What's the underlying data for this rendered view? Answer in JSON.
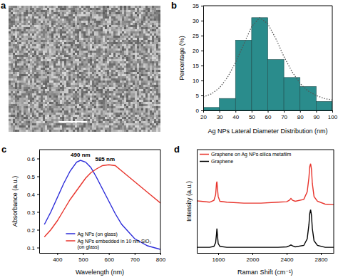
{
  "chart_data": [
    {
      "type": "image",
      "title": "a"
    },
    {
      "type": "histogram",
      "title": "b",
      "x_label": "Ag NPs Lateral Diameter Distribution (nm)",
      "y_label": "Percentage (%)",
      "bins": [
        20,
        30,
        40,
        50,
        60,
        70,
        80,
        90,
        100
      ],
      "values": [
        1,
        4,
        23.5,
        31,
        17,
        11,
        8,
        3
      ],
      "color": "#2a8c8c",
      "xlim": [
        20,
        100
      ],
      "ylim": [
        0,
        35
      ],
      "xticks": [
        20,
        30,
        40,
        50,
        60,
        70,
        80,
        90,
        100
      ],
      "yticks": [
        0,
        5,
        10,
        15,
        20,
        25,
        30,
        35
      ],
      "series": [
        {
          "type": "line",
          "line_style": "dotted",
          "color": "#555555",
          "x": [
            20,
            25,
            30,
            35,
            40,
            45,
            50,
            55,
            60,
            65,
            70,
            75,
            80,
            85,
            90,
            95,
            100
          ],
          "values": [
            4.5,
            5.5,
            7.5,
            11,
            16,
            22,
            28,
            31,
            29,
            24,
            18,
            13,
            9,
            6.5,
            5,
            4,
            3.5
          ]
        }
      ]
    },
    {
      "type": "line",
      "title": "c",
      "x_label": "Wavelength (nm)",
      "y_label": "Absorbance (a.u.)",
      "x": [
        350,
        375,
        400,
        425,
        450,
        475,
        490,
        510,
        530,
        550,
        575,
        600,
        625,
        650,
        700,
        750,
        800
      ],
      "series": [
        {
          "name": "Ag NPs (on glass)",
          "color": "#2b2bd9",
          "values": [
            0.23,
            0.3,
            0.38,
            0.46,
            0.53,
            0.58,
            0.59,
            0.58,
            0.55,
            0.5,
            0.43,
            0.36,
            0.29,
            0.23,
            0.15,
            0.11,
            0.09
          ]
        },
        {
          "name": "Ag NPs embedded in 10 nm SiO₂ (on glass)",
          "color": "#e8332b",
          "values": [
            0.16,
            0.2,
            0.25,
            0.31,
            0.37,
            0.42,
            0.45,
            0.49,
            0.52,
            0.54,
            0.56,
            0.565,
            0.56,
            0.53,
            0.47,
            0.41,
            0.35
          ]
        }
      ],
      "xlim": [
        330,
        800
      ],
      "ylim": [
        0.07,
        0.65
      ],
      "xticks": [
        400,
        500,
        600,
        700,
        800
      ],
      "yticks": [
        0.1,
        0.2,
        0.3,
        0.4,
        0.5,
        0.6
      ],
      "legend": "lower center",
      "annotations": [
        {
          "text": "490 nm",
          "x": 490,
          "y": 0.6
        },
        {
          "text": "585 nm",
          "x": 585,
          "y": 0.575
        }
      ]
    },
    {
      "type": "line",
      "title": "d",
      "x_label": "Raman Shift (cm⁻¹)",
      "y_label": "Intensity (a.u.)",
      "x": [
        1300,
        1400,
        1500,
        1550,
        1570,
        1580,
        1585,
        1590,
        1600,
        1620,
        1700,
        1900,
        2100,
        2300,
        2400,
        2430,
        2450,
        2470,
        2500,
        2600,
        2640,
        2660,
        2670,
        2680,
        2690,
        2700,
        2720,
        2760,
        2850,
        3000
      ],
      "series": [
        {
          "name": "Graphene on Ag NPs-silica metafilm",
          "color": "#e8332b",
          "values": [
            5.6,
            5.5,
            5.4,
            5.6,
            6.2,
            7.4,
            7.6,
            7.0,
            6.0,
            5.5,
            5.4,
            5.3,
            5.3,
            5.4,
            5.45,
            5.6,
            5.8,
            5.6,
            5.5,
            5.7,
            6.5,
            8.0,
            9.2,
            9.5,
            8.9,
            7.4,
            6.0,
            5.5,
            5.2,
            5.1
          ]
        },
        {
          "name": "Graphene",
          "color": "#000000",
          "values": [
            0.6,
            0.6,
            0.6,
            0.7,
            1.1,
            2.0,
            2.6,
            2.0,
            1.0,
            0.7,
            0.6,
            0.6,
            0.6,
            0.6,
            0.65,
            0.75,
            0.85,
            0.75,
            0.65,
            0.8,
            1.5,
            3.0,
            4.2,
            4.6,
            4.0,
            2.6,
            1.3,
            0.8,
            0.6,
            0.6
          ]
        }
      ],
      "xlim": [
        1350,
        2950
      ],
      "ylim": [
        0,
        11
      ],
      "xticks": [
        1600,
        2000,
        2400,
        2800
      ],
      "yticks": [],
      "tick_labels": "x",
      "legend": "upper left"
    }
  ]
}
